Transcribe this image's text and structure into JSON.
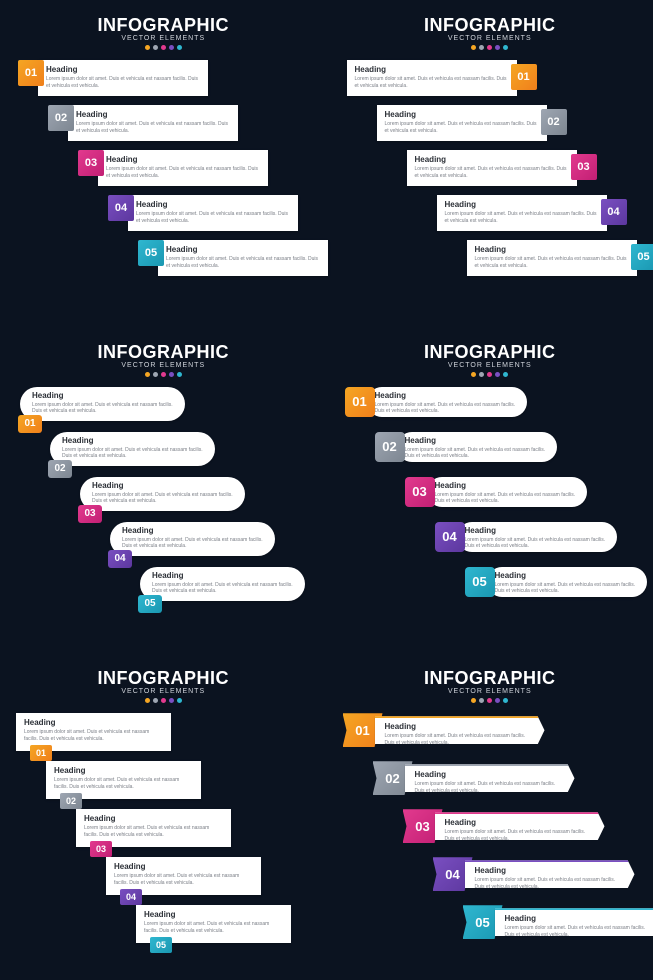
{
  "background_color": "#0b1320",
  "title": "INFOGRAPHIC",
  "subtitle": "VECTOR ELEMENTS",
  "dot_colors": [
    "#f5a623",
    "#9ea6b2",
    "#e23a8e",
    "#7a4fc1",
    "#2fb7d0"
  ],
  "body_text": "Lorem ipsum dolor sit amet. Duis et vehicula est nassam facilis. Duis et vehicula est vehicula.",
  "heading": "Heading",
  "step_colors": [
    {
      "num": "01",
      "bg": "#f5a623",
      "bg2": "#f07f1b"
    },
    {
      "num": "02",
      "bg": "#9ea6b2",
      "bg2": "#7d8691"
    },
    {
      "num": "03",
      "bg": "#e23a8e",
      "bg2": "#c21f74"
    },
    {
      "num": "04",
      "bg": "#7a4fc1",
      "bg2": "#5c379e"
    },
    {
      "num": "05",
      "bg": "#2fb7d0",
      "bg2": "#1a97b1"
    }
  ],
  "panels": {
    "A": {
      "x_offsets": [
        0,
        30,
        60,
        90,
        120
      ],
      "y_step": 45
    },
    "B": {
      "x_offsets": [
        0,
        30,
        60,
        90,
        120
      ],
      "y_step": 45
    },
    "C": {
      "x_offsets": [
        0,
        30,
        60,
        90,
        120
      ],
      "y_step": 45
    },
    "D": {
      "x_offsets": [
        0,
        30,
        60,
        90,
        120
      ],
      "y_step": 45
    },
    "E": {
      "x_offsets": [
        0,
        30,
        60,
        90,
        120
      ],
      "y_step": 48
    },
    "F": {
      "x_offsets": [
        0,
        30,
        60,
        90,
        120
      ],
      "y_step": 48
    }
  }
}
